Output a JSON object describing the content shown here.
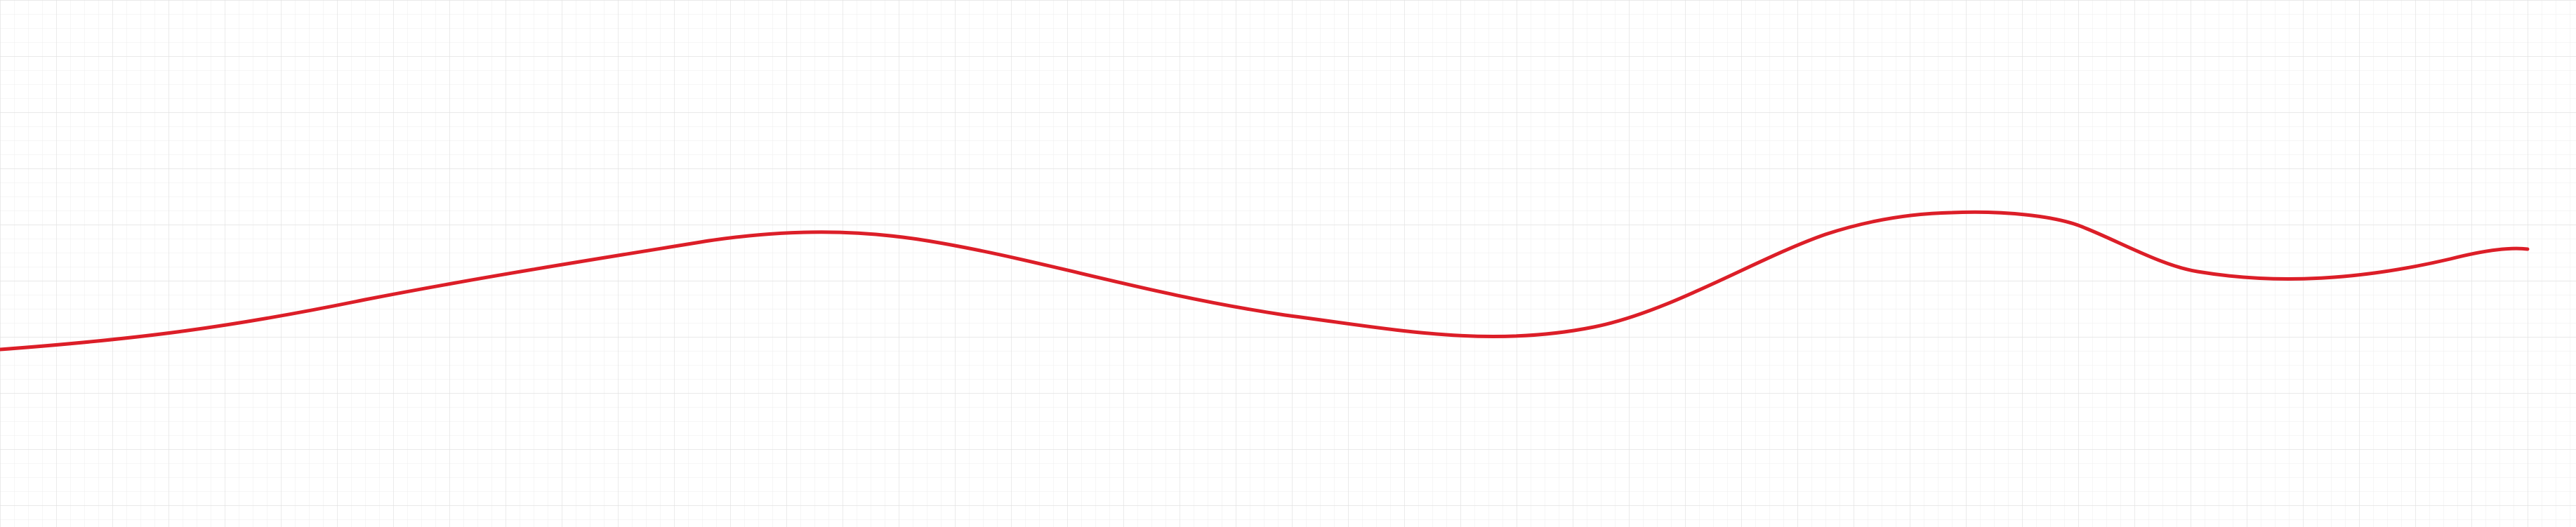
{
  "canvas": {
    "background": "#ffffff",
    "grid_minor_color": "#eeeeee",
    "grid_major_color": "#e2e2e2",
    "grid_visible": true
  },
  "stroke": {
    "color": "#dc1e28",
    "tool": "freehand pen",
    "closed": false,
    "label": ""
  }
}
